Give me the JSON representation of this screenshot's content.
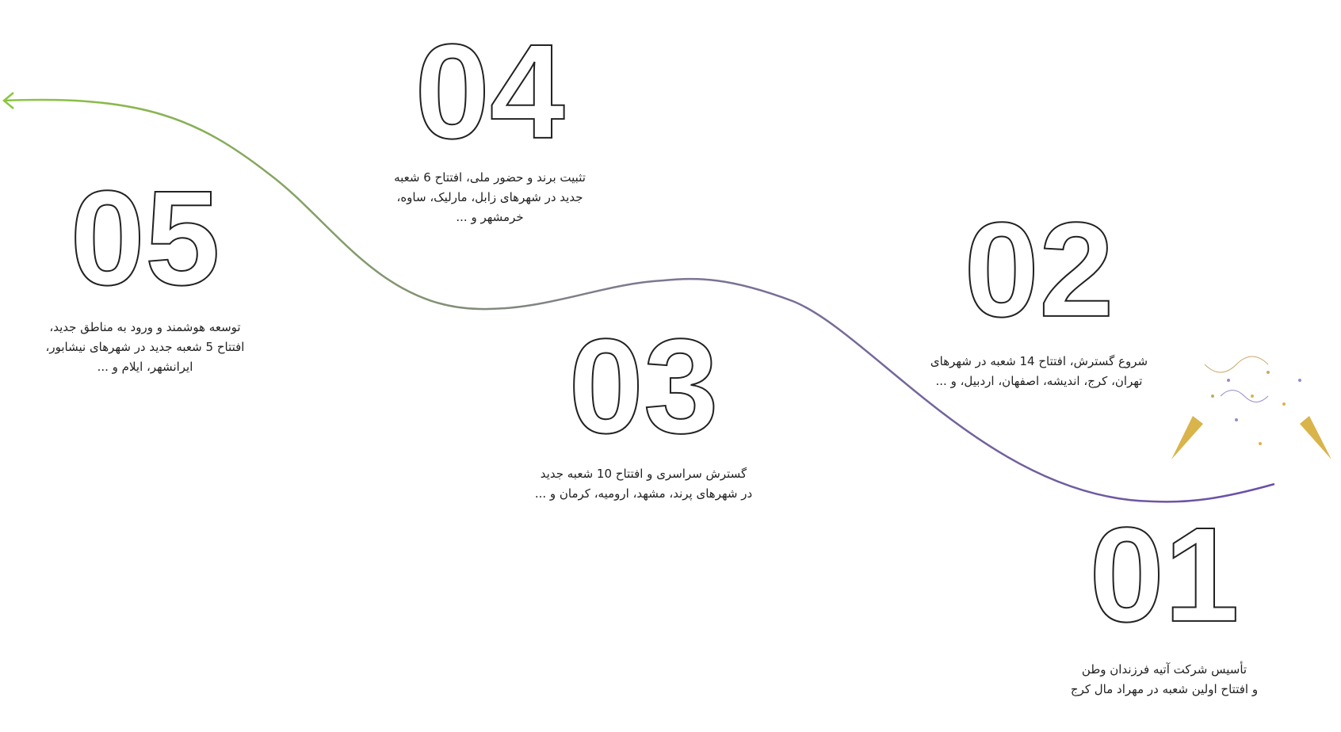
{
  "steps": [
    {
      "number": "01",
      "lines": [
        "تأسیس شرکت آتیه فرزندان وطن",
        "و افتتاح اولین شعبه در مهراد مال کرج"
      ]
    },
    {
      "number": "02",
      "lines": [
        "شروع گسترش، افتتاح 14 شعبه در شهرهای",
        "تهران، کرج، اندیشه، اصفهان، اردبیل، و ..."
      ]
    },
    {
      "number": "03",
      "lines": [
        "گسترش سراسری و افتتاح 10 شعبه جدید",
        "در شهرهای پرند، مشهد، ارومیه، کرمان و ..."
      ]
    },
    {
      "number": "04",
      "lines": [
        "تثبیت برند و حضور ملی، افتتاح 6 شعبه",
        "جدید در شهرهای زابل، مارلیک، ساوه،",
        "خرمشهر و ..."
      ]
    },
    {
      "number": "05",
      "lines": [
        "توسعه هوشمند و ورود به مناطق جدید،",
        "افتتاح 5 شعبه جدید در شهرهای نیشابور،",
        "ایرانشهر، ایلام و ..."
      ]
    }
  ]
}
